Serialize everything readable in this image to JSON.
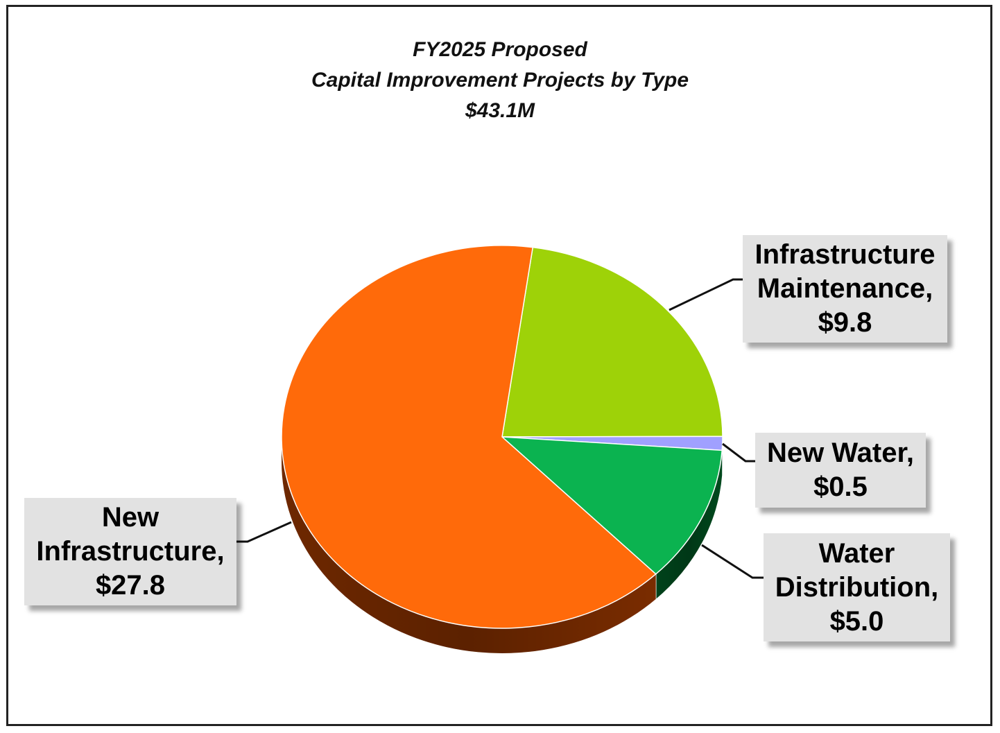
{
  "chart_data": {
    "type": "pie",
    "title": [
      "FY2025 Proposed",
      "Capital Improvement Projects by Type",
      "$43.1M"
    ],
    "total": 43.1,
    "units": "$M",
    "start_angle_deg": -82,
    "slices": [
      {
        "name": "Infrastructure Maintenance",
        "value": 9.8,
        "label": [
          "Infrastructure",
          "Maintenance,",
          "$9.8"
        ],
        "color": "#9ED208",
        "side": "#5d7d05"
      },
      {
        "name": "New Water",
        "value": 0.5,
        "label": [
          "New Water,",
          "$0.5"
        ],
        "color": "#A0A0FF",
        "side": "#5050a0"
      },
      {
        "name": "Water Distribution",
        "value": 5.0,
        "label": [
          "Water",
          "Distribution,",
          "$5.0"
        ],
        "color": "#0BB350",
        "side": "#004a1e"
      },
      {
        "name": "New Infrastructure",
        "value": 27.8,
        "label": [
          "New",
          "Infrastructure,",
          "$27.8"
        ],
        "color": "#FF6A0A",
        "side": "#7a2c00"
      }
    ]
  }
}
